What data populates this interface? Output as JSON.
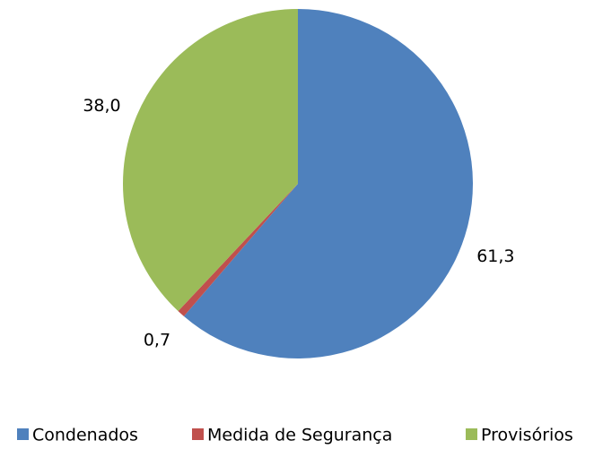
{
  "chart_data": {
    "type": "pie",
    "categories": [
      "Condenados",
      "Medida de Segurança",
      "Provisórios"
    ],
    "values": [
      61.3,
      0.7,
      38.0
    ],
    "value_labels": [
      "61,3",
      "0,7",
      "38,0"
    ],
    "colors": [
      "#4f81bd",
      "#c0504d",
      "#9bbb59"
    ],
    "legend": "bottom"
  }
}
